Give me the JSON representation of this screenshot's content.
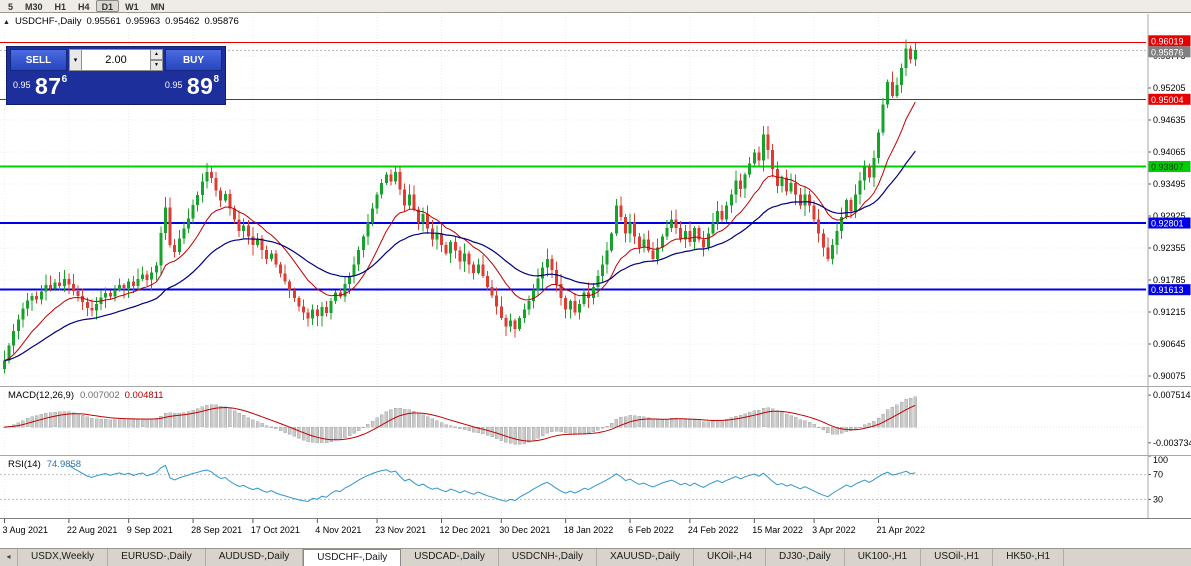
{
  "toolbar": {
    "timeframes": [
      "5",
      "M30",
      "H1",
      "H4",
      "D1",
      "W1",
      "MN"
    ],
    "active": "D1"
  },
  "chart_header": {
    "symbol": "USDCHF-,Daily"
  },
  "icons": {
    "one_click_toggle": "▲",
    "volume_dropdown": "▾",
    "volume_up": "▲",
    "volume_down": "▼",
    "tab_scroll_left": "◂"
  },
  "one_click": {
    "sell_label": "SELL",
    "buy_label": "BUY",
    "volume": "2.00",
    "sell_price_prefix": "0.95",
    "sell_price_big": "87",
    "sell_price_sup": "6",
    "buy_price_prefix": "0.95",
    "buy_price_big": "89",
    "buy_price_sup": "8"
  },
  "chart_data": {
    "type": "candlestick",
    "symbol": "USDCHF-",
    "timeframe": "Daily",
    "ohlc_display": {
      "open": "0.95561",
      "high": "0.95963",
      "low": "0.95462",
      "close": "0.95876"
    },
    "price_axis": {
      "labels": [
        "0.95775",
        "0.95205",
        "0.94635",
        "0.94065",
        "0.93495",
        "0.92925",
        "0.92355",
        "0.91785",
        "0.91215",
        "0.90645",
        "0.90075"
      ]
    },
    "date_ticks": [
      {
        "i": 0,
        "label": "3 Aug 2021"
      },
      {
        "i": 14,
        "label": "22 Aug 2021"
      },
      {
        "i": 27,
        "label": "9 Sep 2021"
      },
      {
        "i": 41,
        "label": "28 Sep 2021"
      },
      {
        "i": 54,
        "label": "17 Oct 2021"
      },
      {
        "i": 68,
        "label": "4 Nov 2021"
      },
      {
        "i": 81,
        "label": "23 Nov 2021"
      },
      {
        "i": 95,
        "label": "12 Dec 2021"
      },
      {
        "i": 108,
        "label": "30 Dec 2021"
      },
      {
        "i": 122,
        "label": "18 Jan 2022"
      },
      {
        "i": 136,
        "label": "6 Feb 2022"
      },
      {
        "i": 149,
        "label": "24 Feb 2022"
      },
      {
        "i": 163,
        "label": "15 Mar 2022"
      },
      {
        "i": 176,
        "label": "3 Apr 2022"
      },
      {
        "i": 190,
        "label": "21 Apr 2022"
      }
    ],
    "hlines": [
      {
        "price": 0.96019,
        "label": "0.96019",
        "color": "#e80000",
        "width": 1,
        "label_fg": "#ffffff"
      },
      {
        "price": 0.95004,
        "label": "0.95004",
        "color": "#e80000",
        "width": 1,
        "label_fg": "#ffffff"
      },
      {
        "price": 0.93807,
        "label": "0.93807",
        "color": "#00ce00",
        "width": 2,
        "label_fg": "#003300"
      },
      {
        "price": 0.92801,
        "label": "0.92801",
        "color": "#0000e8",
        "width": 2,
        "label_fg": "#ffffff"
      },
      {
        "price": 0.91613,
        "label": "0.91613",
        "color": "#0000e8",
        "width": 2,
        "label_fg": "#ffffff"
      }
    ],
    "current_price": {
      "value": 0.95876,
      "label": "0.95876",
      "label_bg": "#808080",
      "label_fg": "#ffffff"
    },
    "candles": {
      "first_open": 0.902,
      "up_color": "#17a22b",
      "down_color": "#dc3c32",
      "closes": [
        0.9035,
        0.9062,
        0.9088,
        0.9108,
        0.9128,
        0.9142,
        0.915,
        0.9144,
        0.9158,
        0.917,
        0.9163,
        0.9174,
        0.9168,
        0.918,
        0.9171,
        0.9159,
        0.915,
        0.9139,
        0.9129,
        0.9124,
        0.9136,
        0.9147,
        0.9155,
        0.9149,
        0.9161,
        0.917,
        0.9164,
        0.9176,
        0.9168,
        0.918,
        0.9188,
        0.9179,
        0.9192,
        0.9204,
        0.9262,
        0.9308,
        0.9241,
        0.9228,
        0.9252,
        0.927,
        0.9288,
        0.9312,
        0.933,
        0.9354,
        0.9371,
        0.936,
        0.9338,
        0.932,
        0.9332,
        0.9306,
        0.9286,
        0.9266,
        0.9276,
        0.9256,
        0.9241,
        0.9252,
        0.9232,
        0.9216,
        0.9226,
        0.9206,
        0.919,
        0.9176,
        0.9161,
        0.9146,
        0.9131,
        0.9121,
        0.911,
        0.9126,
        0.9114,
        0.913,
        0.912,
        0.9141,
        0.9156,
        0.9149,
        0.9171,
        0.9186,
        0.9206,
        0.9232,
        0.9256,
        0.9281,
        0.9306,
        0.9331,
        0.9351,
        0.9366,
        0.9354,
        0.9371,
        0.934,
        0.9311,
        0.9331,
        0.9304,
        0.9281,
        0.9296,
        0.927,
        0.9251,
        0.9261,
        0.9241,
        0.9226,
        0.9246,
        0.9231,
        0.9211,
        0.9226,
        0.9206,
        0.9191,
        0.9206,
        0.9186,
        0.9166,
        0.9151,
        0.9131,
        0.9111,
        0.9096,
        0.9106,
        0.9091,
        0.9111,
        0.9126,
        0.9141,
        0.9161,
        0.9181,
        0.9201,
        0.9216,
        0.9196,
        0.9171,
        0.9146,
        0.9126,
        0.9141,
        0.9121,
        0.9136,
        0.9156,
        0.9146,
        0.9166,
        0.9186,
        0.9206,
        0.9231,
        0.9261,
        0.9311,
        0.9291,
        0.9261,
        0.9281,
        0.9256,
        0.9236,
        0.9251,
        0.9231,
        0.9216,
        0.9236,
        0.9256,
        0.9271,
        0.9286,
        0.9271,
        0.9251,
        0.9266,
        0.9246,
        0.9271,
        0.9251,
        0.9236,
        0.9261,
        0.9281,
        0.9301,
        0.9286,
        0.9311,
        0.9331,
        0.9356,
        0.9341,
        0.9366,
        0.9386,
        0.9406,
        0.9391,
        0.9438,
        0.941,
        0.9376,
        0.9346,
        0.9361,
        0.9336,
        0.9351,
        0.9331,
        0.9311,
        0.9331,
        0.9311,
        0.9286,
        0.9261,
        0.9236,
        0.9216,
        0.9241,
        0.9266,
        0.9291,
        0.9321,
        0.9301,
        0.9331,
        0.9356,
        0.9381,
        0.9361,
        0.9396,
        0.9441,
        0.9491,
        0.9531,
        0.9506,
        0.9526,
        0.9556,
        0.9591,
        0.9571,
        0.9588
      ]
    },
    "moving_averages": [
      {
        "type": "EMA",
        "period": 13,
        "color": "#c00000",
        "width": 1
      },
      {
        "type": "EMA",
        "period": 34,
        "color": "#000080",
        "width": 1.2
      }
    ],
    "indicators": {
      "macd": {
        "name": "MACD(12,26,9)",
        "value_main": "0.007002",
        "value_signal": "0.004811",
        "fast": 12,
        "slow": 26,
        "signal": 9,
        "histogram_color": "#c9c9c9",
        "signal_color": "#c00000",
        "axis": [
          {
            "text": "0.007514",
            "v": 0.007514
          },
          {
            "text": "-0.003734",
            "v": -0.003734
          }
        ]
      },
      "rsi": {
        "name": "RSI(14)",
        "value": "74.9858",
        "period": 14,
        "color": "#2f97d0",
        "levels": [
          70,
          30
        ],
        "axis": [
          {
            "text": "100",
            "v": 100
          },
          {
            "text": "70",
            "v": 70
          },
          {
            "text": "30",
            "v": 30
          }
        ]
      }
    }
  },
  "tabs": {
    "active_index": 3,
    "items": [
      "USDX,Weekly",
      "EURUSD-,Daily",
      "AUDUSD-,Daily",
      "USDCHF-,Daily",
      "USDCAD-,Daily",
      "USDCNH-,Daily",
      "XAUUSD-,Daily",
      "UKOil-,H4",
      "DJ30-,Daily",
      "UK100-,H1",
      "USOil-,H1",
      "HK50-,H1"
    ]
  }
}
